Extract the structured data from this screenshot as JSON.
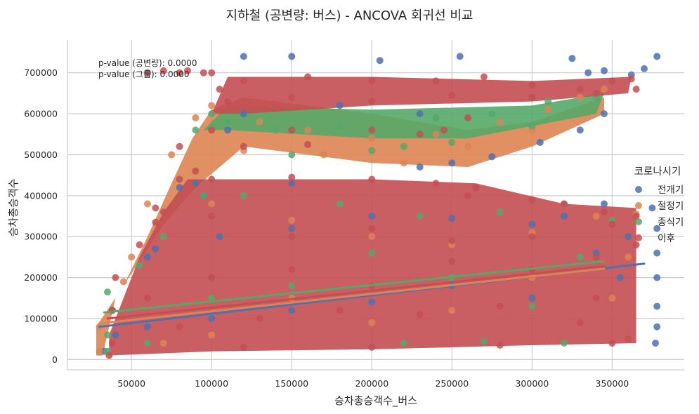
{
  "chart_data": {
    "type": "scatter",
    "title": "지하철 (공변량: 버스) - ANCOVA 회귀선 비교",
    "xlabel": "승차총승객수_버스",
    "ylabel": "승차총승객수",
    "xlim": [
      10000,
      395000
    ],
    "ylim": [
      -25000,
      780000
    ],
    "x_ticks": [
      50000,
      100000,
      150000,
      200000,
      250000,
      300000,
      350000
    ],
    "y_ticks": [
      0,
      100000,
      200000,
      300000,
      400000,
      500000,
      600000,
      700000
    ],
    "grid": true,
    "legend": {
      "title": "코로나시기",
      "placement": "right",
      "entries": [
        "전개기",
        "절정기",
        "종식기",
        "이후"
      ]
    },
    "annotations": [
      "p-value (공변량): 0.0000",
      "p-value (그룹): 0.0000"
    ],
    "series": [
      {
        "name": "전개기",
        "color": "#4c72b0",
        "regression": {
          "x": [
            30000,
            370000
          ],
          "y": [
            80000,
            234000
          ]
        },
        "points": [
          [
            120000,
            740000
          ],
          [
            150000,
            740000
          ],
          [
            205000,
            730000
          ],
          [
            255000,
            740000
          ],
          [
            325000,
            735000
          ],
          [
            370000,
            710000
          ],
          [
            378000,
            740000
          ],
          [
            345000,
            705000
          ],
          [
            335000,
            700000
          ],
          [
            362000,
            695000
          ],
          [
            90000,
            430000
          ],
          [
            150000,
            430000
          ],
          [
            230000,
            470000
          ],
          [
            250000,
            480000
          ],
          [
            275000,
            495000
          ],
          [
            305000,
            530000
          ],
          [
            330000,
            560000
          ],
          [
            345000,
            600000
          ],
          [
            80000,
            420000
          ],
          [
            95000,
            400000
          ],
          [
            105000,
            300000
          ],
          [
            150000,
            320000
          ],
          [
            200000,
            350000
          ],
          [
            250000,
            345000
          ],
          [
            300000,
            330000
          ],
          [
            320000,
            350000
          ],
          [
            345000,
            380000
          ],
          [
            375000,
            370000
          ],
          [
            378000,
            320000
          ],
          [
            378000,
            260000
          ],
          [
            378000,
            200000
          ],
          [
            378000,
            130000
          ],
          [
            378000,
            80000
          ],
          [
            377000,
            40000
          ],
          [
            360000,
            300000
          ],
          [
            355000,
            200000
          ],
          [
            340000,
            260000
          ],
          [
            300000,
            150000
          ],
          [
            250000,
            180000
          ],
          [
            200000,
            140000
          ],
          [
            150000,
            120000
          ],
          [
            100000,
            100000
          ],
          [
            60000,
            80000
          ],
          [
            40000,
            60000
          ],
          [
            38000,
            120000
          ],
          [
            33000,
            20000
          ],
          [
            60000,
            250000
          ],
          [
            65000,
            270000
          ],
          [
            110000,
            560000
          ],
          [
            120000,
            600000
          ],
          [
            180000,
            620000
          ],
          [
            230000,
            600000
          ]
        ]
      },
      {
        "name": "절정기",
        "color": "#dd8452",
        "regression": {
          "x": [
            30000,
            345000
          ],
          "y": [
            88000,
            222000
          ]
        },
        "points": [
          [
            90000,
            590000
          ],
          [
            75000,
            500000
          ],
          [
            60000,
            380000
          ],
          [
            50000,
            250000
          ],
          [
            45000,
            190000
          ],
          [
            30000,
            80000
          ],
          [
            30000,
            20000
          ],
          [
            100000,
            620000
          ],
          [
            130000,
            580000
          ],
          [
            160000,
            560000
          ],
          [
            200000,
            540000
          ],
          [
            240000,
            550000
          ],
          [
            280000,
            580000
          ],
          [
            310000,
            610000
          ],
          [
            330000,
            640000
          ],
          [
            345000,
            660000
          ],
          [
            120000,
            510000
          ],
          [
            170000,
            500000
          ],
          [
            220000,
            480000
          ],
          [
            260000,
            520000
          ],
          [
            300000,
            560000
          ],
          [
            100000,
            380000
          ],
          [
            150000,
            340000
          ],
          [
            200000,
            300000
          ],
          [
            250000,
            280000
          ],
          [
            300000,
            310000
          ],
          [
            340000,
            350000
          ],
          [
            365000,
            355000
          ],
          [
            360000,
            250000
          ],
          [
            350000,
            150000
          ],
          [
            300000,
            200000
          ],
          [
            250000,
            120000
          ],
          [
            200000,
            90000
          ],
          [
            150000,
            150000
          ],
          [
            100000,
            60000
          ],
          [
            70000,
            40000
          ]
        ]
      },
      {
        "name": "종식기",
        "color": "#55a868",
        "regression": {
          "x": [
            33000,
            345000
          ],
          "y": [
            115000,
            240000
          ]
        },
        "points": [
          [
            35000,
            165000
          ],
          [
            35000,
            60000
          ],
          [
            35000,
            20000
          ],
          [
            55000,
            230000
          ],
          [
            70000,
            300000
          ],
          [
            95000,
            400000
          ],
          [
            90000,
            560000
          ],
          [
            100000,
            600000
          ],
          [
            110000,
            580000
          ],
          [
            140000,
            560000
          ],
          [
            180000,
            570000
          ],
          [
            220000,
            520000
          ],
          [
            240000,
            590000
          ],
          [
            275000,
            600000
          ],
          [
            310000,
            630000
          ],
          [
            340000,
            640000
          ],
          [
            150000,
            500000
          ],
          [
            200000,
            510000
          ],
          [
            250000,
            530000
          ],
          [
            300000,
            570000
          ],
          [
            120000,
            400000
          ],
          [
            180000,
            380000
          ],
          [
            230000,
            350000
          ],
          [
            280000,
            360000
          ],
          [
            320000,
            380000
          ],
          [
            350000,
            340000
          ],
          [
            330000,
            250000
          ],
          [
            300000,
            130000
          ],
          [
            250000,
            200000
          ],
          [
            200000,
            260000
          ],
          [
            150000,
            180000
          ],
          [
            100000,
            150000
          ],
          [
            60000,
            40000
          ],
          [
            320000,
            40000
          ],
          [
            270000,
            45000
          ],
          [
            220000,
            40000
          ]
        ]
      },
      {
        "name": "이후",
        "color": "#c44e52",
        "regression": {
          "x": [
            35000,
            345000
          ],
          "y": [
            100000,
            228000
          ]
        },
        "points": [
          [
            60000,
            700000
          ],
          [
            70000,
            705000
          ],
          [
            80000,
            700000
          ],
          [
            85000,
            705000
          ],
          [
            95000,
            700000
          ],
          [
            100000,
            700000
          ],
          [
            105000,
            660000
          ],
          [
            120000,
            680000
          ],
          [
            160000,
            690000
          ],
          [
            200000,
            680000
          ],
          [
            240000,
            680000
          ],
          [
            270000,
            690000
          ],
          [
            300000,
            670000
          ],
          [
            330000,
            660000
          ],
          [
            350000,
            680000
          ],
          [
            362000,
            685000
          ],
          [
            365000,
            660000
          ],
          [
            110000,
            630000
          ],
          [
            150000,
            640000
          ],
          [
            200000,
            630000
          ],
          [
            250000,
            645000
          ],
          [
            300000,
            640000
          ],
          [
            340000,
            650000
          ],
          [
            100000,
            560000
          ],
          [
            150000,
            560000
          ],
          [
            200000,
            560000
          ],
          [
            230000,
            550000
          ],
          [
            245000,
            560000
          ],
          [
            260000,
            590000
          ],
          [
            80000,
            520000
          ],
          [
            120000,
            520000
          ],
          [
            160000,
            525000
          ],
          [
            90000,
            460000
          ],
          [
            65000,
            370000
          ],
          [
            65000,
            335000
          ],
          [
            70000,
            360000
          ],
          [
            80000,
            440000
          ],
          [
            100000,
            440000
          ],
          [
            150000,
            445000
          ],
          [
            200000,
            440000
          ],
          [
            240000,
            430000
          ],
          [
            265000,
            420000
          ],
          [
            260000,
            400000
          ],
          [
            300000,
            390000
          ],
          [
            320000,
            380000
          ],
          [
            345000,
            360000
          ],
          [
            350000,
            330000
          ],
          [
            365000,
            350000
          ],
          [
            365000,
            280000
          ],
          [
            55000,
            280000
          ],
          [
            40000,
            200000
          ],
          [
            38000,
            120000
          ],
          [
            38000,
            40000
          ],
          [
            36000,
            10000
          ],
          [
            100000,
            350000
          ],
          [
            150000,
            300000
          ],
          [
            200000,
            320000
          ],
          [
            250000,
            290000
          ],
          [
            300000,
            300000
          ],
          [
            340000,
            250000
          ],
          [
            60000,
            150000
          ],
          [
            100000,
            200000
          ],
          [
            150000,
            220000
          ],
          [
            200000,
            180000
          ],
          [
            250000,
            240000
          ],
          [
            300000,
            220000
          ],
          [
            340000,
            150000
          ],
          [
            80000,
            80000
          ],
          [
            130000,
            100000
          ],
          [
            180000,
            120000
          ],
          [
            230000,
            110000
          ],
          [
            280000,
            130000
          ],
          [
            330000,
            90000
          ],
          [
            360000,
            50000
          ],
          [
            120000,
            30000
          ],
          [
            200000,
            30000
          ],
          [
            280000,
            35000
          ],
          [
            350000,
            40000
          ]
        ]
      }
    ]
  }
}
